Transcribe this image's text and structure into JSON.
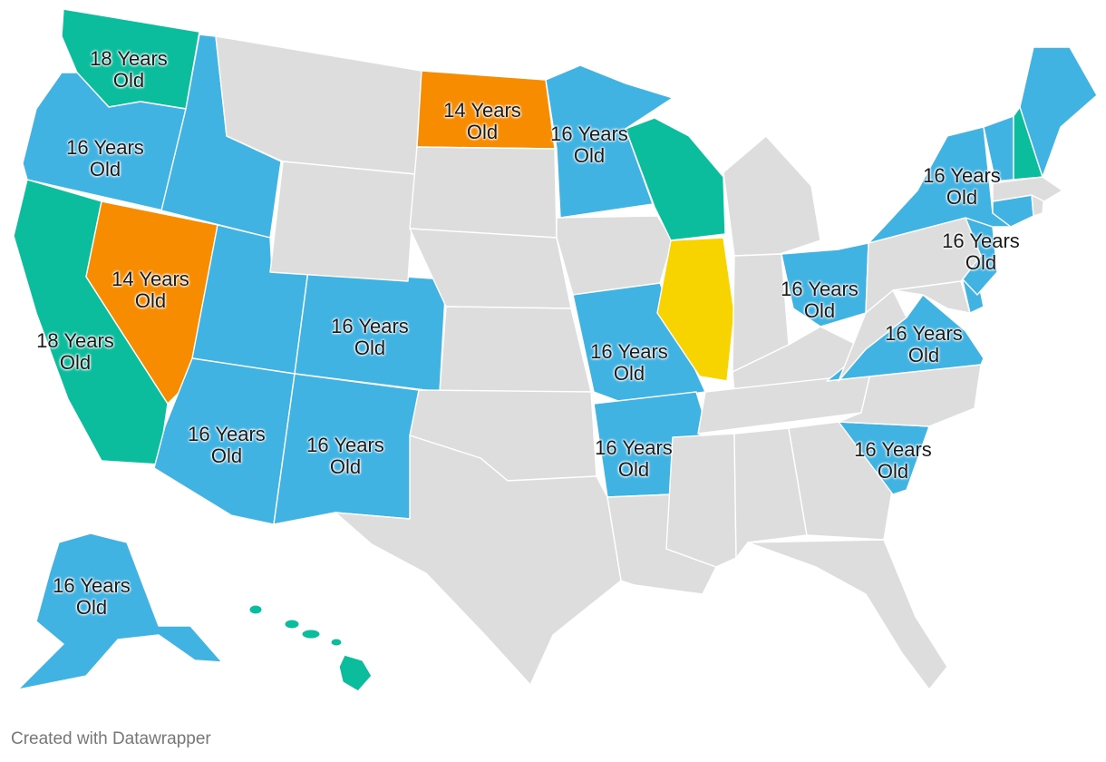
{
  "legend_colors": {
    "age_14": "#f78c00",
    "age_16": "#41b3e2",
    "age_18": "#0cbd9d",
    "illinois": "#f7d400",
    "no_data": "#dddddd"
  },
  "states": [
    {
      "id": "WA",
      "group": "age_18",
      "label": [
        "18 Years",
        "Old"
      ]
    },
    {
      "id": "OR",
      "group": "age_16",
      "label": [
        "16 Years",
        "Old"
      ]
    },
    {
      "id": "CA",
      "group": "age_18",
      "label": [
        "18 Years",
        "Old"
      ]
    },
    {
      "id": "NV",
      "group": "age_14",
      "label": [
        "14 Years",
        "Old"
      ]
    },
    {
      "id": "ID",
      "group": "age_16"
    },
    {
      "id": "UT",
      "group": "age_16"
    },
    {
      "id": "AZ",
      "group": "age_16",
      "label": [
        "16 Years",
        "Old"
      ]
    },
    {
      "id": "CO",
      "group": "age_16",
      "label": [
        "16 Years",
        "Old"
      ]
    },
    {
      "id": "NM",
      "group": "age_16",
      "label": [
        "16 Years",
        "Old"
      ]
    },
    {
      "id": "ND",
      "group": "age_14",
      "label": [
        "14 Years",
        "Old"
      ]
    },
    {
      "id": "MN",
      "group": "age_16",
      "label": [
        "16 Years",
        "Old"
      ]
    },
    {
      "id": "WI",
      "group": "age_18"
    },
    {
      "id": "IL",
      "group": "illinois"
    },
    {
      "id": "MO",
      "group": "age_16",
      "label": [
        "16 Years",
        "Old"
      ]
    },
    {
      "id": "AR",
      "group": "age_16",
      "label": [
        "16 Years",
        "Old"
      ]
    },
    {
      "id": "OH",
      "group": "age_16",
      "label": [
        "16 Years",
        "Old"
      ]
    },
    {
      "id": "VA",
      "group": "age_16",
      "label": [
        "16 Years",
        "Old"
      ]
    },
    {
      "id": "SC",
      "group": "age_16",
      "label": [
        "16 Years",
        "Old"
      ]
    },
    {
      "id": "NY",
      "group": "age_16",
      "label": [
        "16 Years",
        "Old"
      ]
    },
    {
      "id": "NJ",
      "group": "age_16",
      "label": [
        "16 Years",
        "Old"
      ]
    },
    {
      "id": "ME",
      "group": "age_16"
    },
    {
      "id": "VT",
      "group": "age_16"
    },
    {
      "id": "NH",
      "group": "age_18"
    },
    {
      "id": "CT",
      "group": "age_16"
    },
    {
      "id": "DE",
      "group": "age_16"
    },
    {
      "id": "AK",
      "group": "age_16",
      "label": [
        "16 Years",
        "Old"
      ]
    },
    {
      "id": "HI",
      "group": "age_18"
    },
    {
      "id": "MT",
      "group": "no_data"
    },
    {
      "id": "WY",
      "group": "no_data"
    },
    {
      "id": "SD",
      "group": "no_data"
    },
    {
      "id": "NE",
      "group": "no_data"
    },
    {
      "id": "KS",
      "group": "no_data"
    },
    {
      "id": "OK",
      "group": "no_data"
    },
    {
      "id": "TX",
      "group": "no_data"
    },
    {
      "id": "IA",
      "group": "no_data"
    },
    {
      "id": "LA",
      "group": "no_data"
    },
    {
      "id": "MS",
      "group": "no_data"
    },
    {
      "id": "AL",
      "group": "no_data"
    },
    {
      "id": "GA",
      "group": "no_data"
    },
    {
      "id": "FL",
      "group": "no_data"
    },
    {
      "id": "TN",
      "group": "no_data"
    },
    {
      "id": "KY",
      "group": "no_data"
    },
    {
      "id": "IN",
      "group": "no_data"
    },
    {
      "id": "MI",
      "group": "no_data"
    },
    {
      "id": "NC",
      "group": "no_data"
    },
    {
      "id": "WV",
      "group": "no_data"
    },
    {
      "id": "PA",
      "group": "no_data"
    },
    {
      "id": "MD",
      "group": "no_data"
    },
    {
      "id": "MA",
      "group": "no_data"
    },
    {
      "id": "RI",
      "group": "no_data"
    }
  ],
  "footer": {
    "credit": "Created with Datawrapper"
  }
}
